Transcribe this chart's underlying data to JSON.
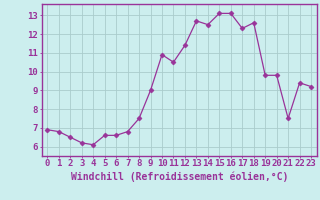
{
  "x": [
    0,
    1,
    2,
    3,
    4,
    5,
    6,
    7,
    8,
    9,
    10,
    11,
    12,
    13,
    14,
    15,
    16,
    17,
    18,
    19,
    20,
    21,
    22,
    23
  ],
  "y": [
    6.9,
    6.8,
    6.5,
    6.2,
    6.1,
    6.6,
    6.6,
    6.8,
    7.5,
    9.0,
    10.9,
    10.5,
    11.4,
    12.7,
    12.5,
    13.1,
    13.1,
    12.3,
    12.6,
    9.8,
    9.8,
    7.5,
    9.4,
    9.2
  ],
  "line_color": "#993399",
  "marker": "D",
  "marker_size": 2.5,
  "bg_color": "#cceeee",
  "grid_color": "#aacccc",
  "axis_label_color": "#993399",
  "tick_color": "#993399",
  "xlabel": "Windchill (Refroidissement éolien,°C)",
  "ylabel_ticks": [
    6,
    7,
    8,
    9,
    10,
    11,
    12,
    13
  ],
  "ylim": [
    5.5,
    13.6
  ],
  "xlim": [
    -0.5,
    23.5
  ],
  "xtick_labels": [
    "0",
    "1",
    "2",
    "3",
    "4",
    "5",
    "6",
    "7",
    "8",
    "9",
    "10",
    "11",
    "12",
    "13",
    "14",
    "15",
    "16",
    "17",
    "18",
    "19",
    "20",
    "21",
    "22",
    "23"
  ],
  "label_fontsize": 6.5,
  "xlabel_fontsize": 7.0
}
